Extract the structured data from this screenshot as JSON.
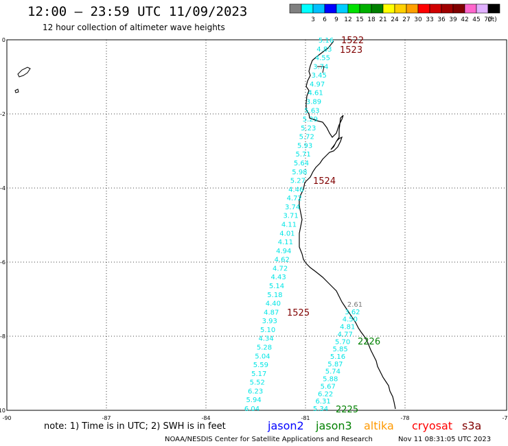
{
  "title": "12:00 – 23:59 UTC 11/09/2023",
  "subtitle": "12 hour collection of altimeter wave heights",
  "legend": {
    "unit": "(ft)",
    "swatches": [
      {
        "color": "#808080",
        "label": ""
      },
      {
        "color": "#00ffff",
        "label": "3"
      },
      {
        "color": "#00bfff",
        "label": "6"
      },
      {
        "color": "#0000ff",
        "label": "9"
      },
      {
        "color": "#00ccff",
        "label": "12"
      },
      {
        "color": "#00e000",
        "label": "15"
      },
      {
        "color": "#00b000",
        "label": "18"
      },
      {
        "color": "#008000",
        "label": "21"
      },
      {
        "color": "#ffff00",
        "label": "24"
      },
      {
        "color": "#ffd000",
        "label": "27"
      },
      {
        "color": "#ffa000",
        "label": "30"
      },
      {
        "color": "#ff0000",
        "label": "33"
      },
      {
        "color": "#d00000",
        "label": "36"
      },
      {
        "color": "#a00000",
        "label": "39"
      },
      {
        "color": "#800000",
        "label": "42"
      },
      {
        "color": "#ff66cc",
        "label": "45"
      },
      {
        "color": "#e0b0ff",
        "label": "70"
      },
      {
        "color": "#000000",
        "label": ""
      }
    ]
  },
  "axes": {
    "lon_ticks": [
      "-90",
      "-87",
      "-84",
      "-81",
      "-78",
      "-75"
    ],
    "lat_ticks": [
      "0",
      "-2",
      "-4",
      "-6",
      "-8",
      "-10"
    ]
  },
  "track_a": {
    "values": [
      "5.16",
      "4.83",
      "4.55",
      "3.74",
      "3.45",
      "4.97",
      "4.61",
      "3.89",
      "5.63",
      "5.29",
      "5.23",
      "5.72",
      "5.93",
      "5.71",
      "5.64",
      "5.98",
      "5.27",
      "4.46",
      "4.72",
      "3.74",
      "3.71",
      "4.11",
      "4.01",
      "4.11",
      "4.94",
      "4.62",
      "4.72",
      "4.43",
      "5.14",
      "5.18",
      "4.40",
      "4.87",
      "3.93",
      "5.10",
      "4.34",
      "5.28",
      "5.04",
      "5.59",
      "5.17",
      "5.52",
      "6.23",
      "5.94",
      "6.04"
    ],
    "time_labels": [
      "1522",
      "1523",
      "1524",
      "1525"
    ]
  },
  "track_b": {
    "values": [
      "2.61",
      "3.62",
      "4.50",
      "4.81",
      "4.77",
      "5.70",
      "5.85",
      "5.16",
      "5.87",
      "5.74",
      "5.88",
      "5.67",
      "6.22",
      "6.31",
      "5.34"
    ],
    "time_labels": [
      "2226",
      "2225"
    ]
  },
  "footer": {
    "note": "note: 1) Time is in UTC; 2) SWH is in feet",
    "missions": [
      {
        "name": "jason2",
        "color": "#0000ff"
      },
      {
        "name": "jason3",
        "color": "#008000"
      },
      {
        "name": "altika",
        "color": "#ff9900"
      },
      {
        "name": "cryosat",
        "color": "#ff0000"
      },
      {
        "name": "s3a",
        "color": "#800000"
      }
    ],
    "credit": "NOAA/NESDIS Center for Satellite Applications and Research",
    "timestamp": "Nov 11 08:31:05 UTC 2023"
  }
}
